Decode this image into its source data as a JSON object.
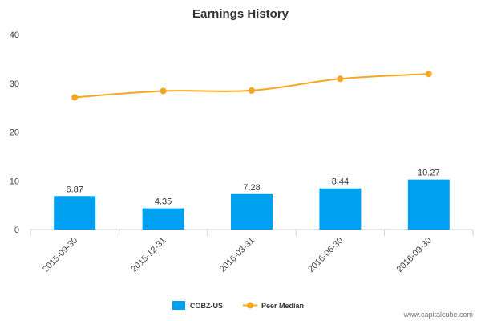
{
  "chart_data": {
    "type": "bar",
    "title": "Earnings History",
    "xlabel": "",
    "ylabel": "",
    "categories": [
      "2015-09-30",
      "2015-12-31",
      "2016-03-31",
      "2016-06-30",
      "2016-09-30"
    ],
    "series": [
      {
        "name": "COBZ-US",
        "type": "bar",
        "color": "#00a0f0",
        "values": [
          6.87,
          4.35,
          7.28,
          8.44,
          10.27
        ],
        "value_labels": [
          "6.87",
          "4.35",
          "7.28",
          "8.44",
          "10.27"
        ]
      },
      {
        "name": "Peer Median",
        "type": "line",
        "color": "#f5a623",
        "values": [
          27.1,
          28.4,
          28.5,
          30.9,
          31.9
        ]
      }
    ],
    "ylim": [
      0,
      40
    ],
    "yticks": [
      "0",
      "10",
      "20",
      "30",
      "40"
    ],
    "grid": false,
    "legend_position": "bottom-center"
  },
  "credit": "www.capitalcube.com"
}
